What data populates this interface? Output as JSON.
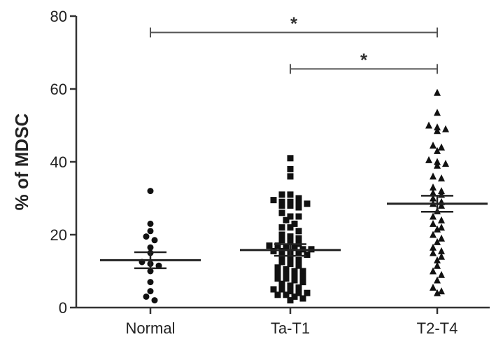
{
  "chart_data": {
    "type": "scatter",
    "title": "",
    "xlabel": "",
    "ylabel": "% of MDSC",
    "ylim": [
      0,
      80
    ],
    "yticks": [
      "0",
      "20",
      "40",
      "60",
      "80"
    ],
    "grid": false,
    "categories": [
      "Normal",
      "Ta-T1",
      "T2-T4"
    ],
    "series": [
      {
        "category": "Normal",
        "marker": "circle",
        "mean": 13,
        "sem_low": 10.8,
        "sem_high": 15.2,
        "values": [
          32,
          23,
          21,
          19.5,
          18.5,
          16.5,
          15,
          12.5,
          12,
          11.5,
          10,
          7,
          4.5,
          3,
          2
        ]
      },
      {
        "category": "Ta-T1",
        "marker": "square",
        "mean": 15.8,
        "sem_low": 14.2,
        "sem_high": 17.4,
        "values": [
          41,
          38,
          36,
          31,
          31,
          30,
          29.5,
          29,
          29,
          28.5,
          28.5,
          28,
          28,
          27.5,
          26,
          25,
          25,
          24,
          23,
          22,
          22,
          21,
          20,
          19.5,
          19,
          18.5,
          18,
          17.5,
          17,
          17,
          16.5,
          16.5,
          16,
          16,
          15.5,
          15.5,
          15,
          15,
          14.5,
          14,
          13.5,
          13,
          12.5,
          12,
          11.5,
          11,
          10.5,
          10,
          10,
          9.5,
          9,
          9,
          8.5,
          8,
          8,
          7.5,
          7,
          6.5,
          6,
          5.5,
          5,
          5,
          4.5,
          4,
          4,
          3.5,
          3.5,
          3,
          2.5,
          2
        ]
      },
      {
        "category": "T2-T4",
        "marker": "triangle",
        "mean": 28.5,
        "sem_low": 26.3,
        "sem_high": 30.7,
        "values": [
          59,
          53.5,
          50,
          49.5,
          49,
          48.5,
          44.5,
          44,
          43,
          40.5,
          40,
          39.5,
          39,
          36,
          35.5,
          33,
          32,
          31.5,
          31,
          30,
          29,
          28.5,
          28,
          26.5,
          25,
          24,
          23,
          22,
          21.5,
          20,
          19,
          18,
          16.5,
          15.5,
          15,
          14,
          13,
          11.5,
          10,
          9,
          7.5,
          5.5,
          4.5,
          4
        ]
      }
    ],
    "significance": [
      {
        "from": "Normal",
        "to": "T2-T4",
        "y": 75.5,
        "label": "*"
      },
      {
        "from": "Ta-T1",
        "to": "T2-T4",
        "y": 65.5,
        "label": "*"
      }
    ]
  }
}
